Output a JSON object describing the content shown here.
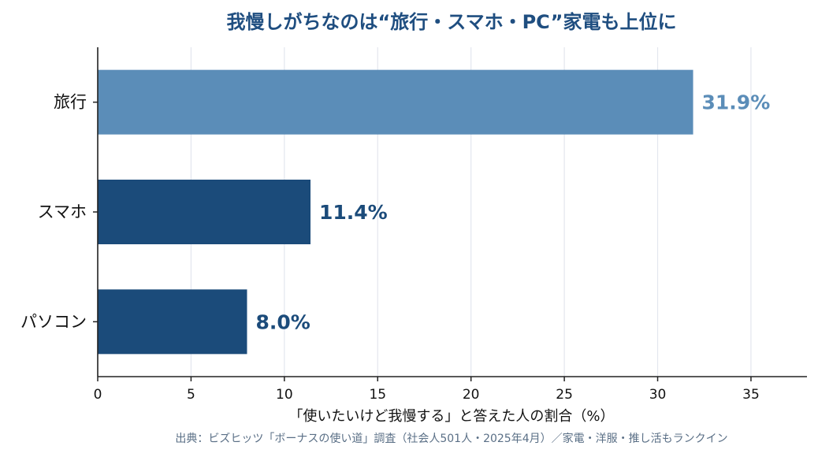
{
  "chart_data": {
    "type": "bar",
    "orientation": "horizontal",
    "title": "我慢しがちなのは“旅行・スマホ・PC”家電も上位に",
    "categories": [
      "旅行",
      "スマホ",
      "パソコン"
    ],
    "values": [
      31.9,
      11.4,
      8.0
    ],
    "value_labels": [
      "31.9%",
      "11.4%",
      "8.0%"
    ],
    "xlabel": "「使いたいけど我慢する」と答えた人の割合（%）",
    "ylabel": "",
    "xlim": [
      0,
      38
    ],
    "xticks": [
      0,
      5,
      10,
      15,
      20,
      25,
      30,
      35
    ],
    "xtick_labels": [
      "0",
      "5",
      "10",
      "15",
      "20",
      "25",
      "30",
      "35"
    ],
    "grid": "vertical",
    "colors": {
      "highlight": "#5b8db8",
      "default": "#1b4b7a",
      "title": "#1f4e80",
      "grid": "#e3e6ee",
      "axis": "#222222",
      "source": "#5a6f86"
    },
    "highlight_index": 0,
    "source": "出典：ビズヒッツ「ボーナスの使い道」調査（社会人501人・2025年4月）／家電・洋服・推し活もランクイン"
  }
}
